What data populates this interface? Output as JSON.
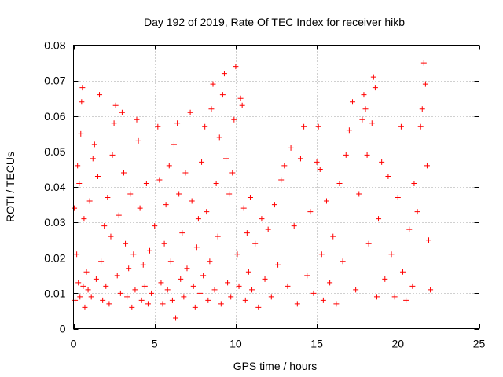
{
  "chart_data": {
    "type": "scatter",
    "title": "Day 192 of 2019, Rate Of TEC Index for receiver hikb",
    "xlabel": "GPS time / hours",
    "ylabel": "ROTI / TECUs",
    "xlim": [
      0,
      25
    ],
    "ylim": [
      0,
      0.08
    ],
    "xticks": [
      0,
      5,
      10,
      15,
      20,
      25
    ],
    "xtick_labels": [
      "0",
      "5",
      "10",
      "15",
      "20",
      "25"
    ],
    "yticks": [
      0,
      0.01,
      0.02,
      0.03,
      0.04,
      0.05,
      0.06,
      0.07,
      0.08
    ],
    "ytick_labels": [
      "0",
      "0.01",
      "0.02",
      "0.03",
      "0.04",
      "0.05",
      "0.06",
      "0.07",
      "0.08"
    ],
    "grid": true,
    "marker": "+",
    "color": "#ff0000",
    "series": [
      {
        "name": "ROTI",
        "points": [
          [
            0.05,
            0.034
          ],
          [
            0.1,
            0.008
          ],
          [
            0.2,
            0.021
          ],
          [
            0.25,
            0.046
          ],
          [
            0.3,
            0.013
          ],
          [
            0.35,
            0.041
          ],
          [
            0.4,
            0.009
          ],
          [
            0.45,
            0.055
          ],
          [
            0.5,
            0.064
          ],
          [
            0.55,
            0.068
          ],
          [
            0.6,
            0.012
          ],
          [
            0.65,
            0.031
          ],
          [
            0.7,
            0.006
          ],
          [
            0.8,
            0.016
          ],
          [
            0.9,
            0.011
          ],
          [
            1.0,
            0.036
          ],
          [
            1.1,
            0.009
          ],
          [
            1.2,
            0.048
          ],
          [
            1.3,
            0.052
          ],
          [
            1.4,
            0.014
          ],
          [
            1.5,
            0.043
          ],
          [
            1.6,
            0.066
          ],
          [
            1.7,
            0.019
          ],
          [
            1.8,
            0.008
          ],
          [
            1.9,
            0.029
          ],
          [
            2.0,
            0.012
          ],
          [
            2.1,
            0.037
          ],
          [
            2.2,
            0.007
          ],
          [
            2.3,
            0.026
          ],
          [
            2.4,
            0.049
          ],
          [
            2.5,
            0.058
          ],
          [
            2.6,
            0.063
          ],
          [
            2.7,
            0.015
          ],
          [
            2.8,
            0.032
          ],
          [
            2.9,
            0.01
          ],
          [
            3.0,
            0.061
          ],
          [
            3.1,
            0.044
          ],
          [
            3.2,
            0.024
          ],
          [
            3.3,
            0.009
          ],
          [
            3.4,
            0.017
          ],
          [
            3.5,
            0.038
          ],
          [
            3.6,
            0.006
          ],
          [
            3.7,
            0.021
          ],
          [
            3.8,
            0.011
          ],
          [
            3.9,
            0.059
          ],
          [
            4.0,
            0.053
          ],
          [
            4.1,
            0.034
          ],
          [
            4.2,
            0.008
          ],
          [
            4.3,
            0.018
          ],
          [
            4.4,
            0.012
          ],
          [
            4.5,
            0.041
          ],
          [
            4.6,
            0.007
          ],
          [
            4.7,
            0.022
          ],
          [
            4.8,
            0.01
          ],
          [
            5.0,
            0.029
          ],
          [
            5.2,
            0.057
          ],
          [
            5.3,
            0.042
          ],
          [
            5.4,
            0.013
          ],
          [
            5.5,
            0.007
          ],
          [
            5.6,
            0.024
          ],
          [
            5.7,
            0.035
          ],
          [
            5.8,
            0.011
          ],
          [
            5.9,
            0.046
          ],
          [
            6.0,
            0.019
          ],
          [
            6.1,
            0.008
          ],
          [
            6.2,
            0.052
          ],
          [
            6.3,
            0.003
          ],
          [
            6.4,
            0.058
          ],
          [
            6.5,
            0.038
          ],
          [
            6.6,
            0.014
          ],
          [
            6.7,
            0.027
          ],
          [
            6.8,
            0.009
          ],
          [
            6.9,
            0.044
          ],
          [
            7.0,
            0.017
          ],
          [
            7.2,
            0.061
          ],
          [
            7.3,
            0.036
          ],
          [
            7.4,
            0.012
          ],
          [
            7.5,
            0.006
          ],
          [
            7.6,
            0.023
          ],
          [
            7.7,
            0.031
          ],
          [
            7.8,
            0.01
          ],
          [
            7.9,
            0.047
          ],
          [
            8.0,
            0.015
          ],
          [
            8.1,
            0.057
          ],
          [
            8.2,
            0.033
          ],
          [
            8.3,
            0.008
          ],
          [
            8.4,
            0.019
          ],
          [
            8.5,
            0.062
          ],
          [
            8.6,
            0.069
          ],
          [
            8.7,
            0.011
          ],
          [
            8.8,
            0.041
          ],
          [
            8.9,
            0.026
          ],
          [
            9.0,
            0.054
          ],
          [
            9.1,
            0.007
          ],
          [
            9.2,
            0.066
          ],
          [
            9.3,
            0.072
          ],
          [
            9.4,
            0.048
          ],
          [
            9.5,
            0.013
          ],
          [
            9.6,
            0.038
          ],
          [
            9.7,
            0.009
          ],
          [
            9.8,
            0.044
          ],
          [
            9.9,
            0.059
          ],
          [
            10.0,
            0.074
          ],
          [
            10.1,
            0.021
          ],
          [
            10.2,
            0.012
          ],
          [
            10.3,
            0.065
          ],
          [
            10.4,
            0.063
          ],
          [
            10.5,
            0.034
          ],
          [
            10.6,
            0.008
          ],
          [
            10.7,
            0.027
          ],
          [
            10.8,
            0.016
          ],
          [
            10.9,
            0.037
          ],
          [
            11.0,
            0.011
          ],
          [
            11.2,
            0.024
          ],
          [
            11.4,
            0.006
          ],
          [
            11.6,
            0.031
          ],
          [
            11.8,
            0.014
          ],
          [
            12.0,
            0.028
          ],
          [
            12.2,
            0.009
          ],
          [
            12.4,
            0.035
          ],
          [
            12.6,
            0.018
          ],
          [
            12.8,
            0.042
          ],
          [
            13.0,
            0.046
          ],
          [
            13.2,
            0.012
          ],
          [
            13.4,
            0.051
          ],
          [
            13.6,
            0.029
          ],
          [
            13.8,
            0.007
          ],
          [
            14.0,
            0.048
          ],
          [
            14.2,
            0.057
          ],
          [
            14.4,
            0.015
          ],
          [
            14.6,
            0.033
          ],
          [
            14.8,
            0.01
          ],
          [
            15.0,
            0.047
          ],
          [
            15.1,
            0.057
          ],
          [
            15.2,
            0.045
          ],
          [
            15.3,
            0.021
          ],
          [
            15.4,
            0.008
          ],
          [
            15.6,
            0.036
          ],
          [
            15.8,
            0.013
          ],
          [
            16.0,
            0.026
          ],
          [
            16.2,
            0.007
          ],
          [
            16.4,
            0.041
          ],
          [
            16.6,
            0.019
          ],
          [
            16.8,
            0.049
          ],
          [
            17.0,
            0.056
          ],
          [
            17.2,
            0.064
          ],
          [
            17.4,
            0.011
          ],
          [
            17.6,
            0.038
          ],
          [
            17.8,
            0.059
          ],
          [
            17.9,
            0.066
          ],
          [
            18.0,
            0.062
          ],
          [
            18.1,
            0.049
          ],
          [
            18.2,
            0.024
          ],
          [
            18.4,
            0.058
          ],
          [
            18.5,
            0.071
          ],
          [
            18.6,
            0.068
          ],
          [
            18.7,
            0.009
          ],
          [
            18.8,
            0.031
          ],
          [
            19.0,
            0.047
          ],
          [
            19.2,
            0.014
          ],
          [
            19.4,
            0.043
          ],
          [
            19.6,
            0.021
          ],
          [
            19.8,
            0.009
          ],
          [
            20.0,
            0.037
          ],
          [
            20.2,
            0.057
          ],
          [
            20.3,
            0.016
          ],
          [
            20.5,
            0.008
          ],
          [
            20.7,
            0.028
          ],
          [
            20.9,
            0.012
          ],
          [
            21.0,
            0.041
          ],
          [
            21.2,
            0.033
          ],
          [
            21.4,
            0.057
          ],
          [
            21.5,
            0.062
          ],
          [
            21.6,
            0.075
          ],
          [
            21.7,
            0.069
          ],
          [
            21.8,
            0.046
          ],
          [
            21.9,
            0.025
          ],
          [
            22.0,
            0.011
          ]
        ]
      }
    ]
  }
}
